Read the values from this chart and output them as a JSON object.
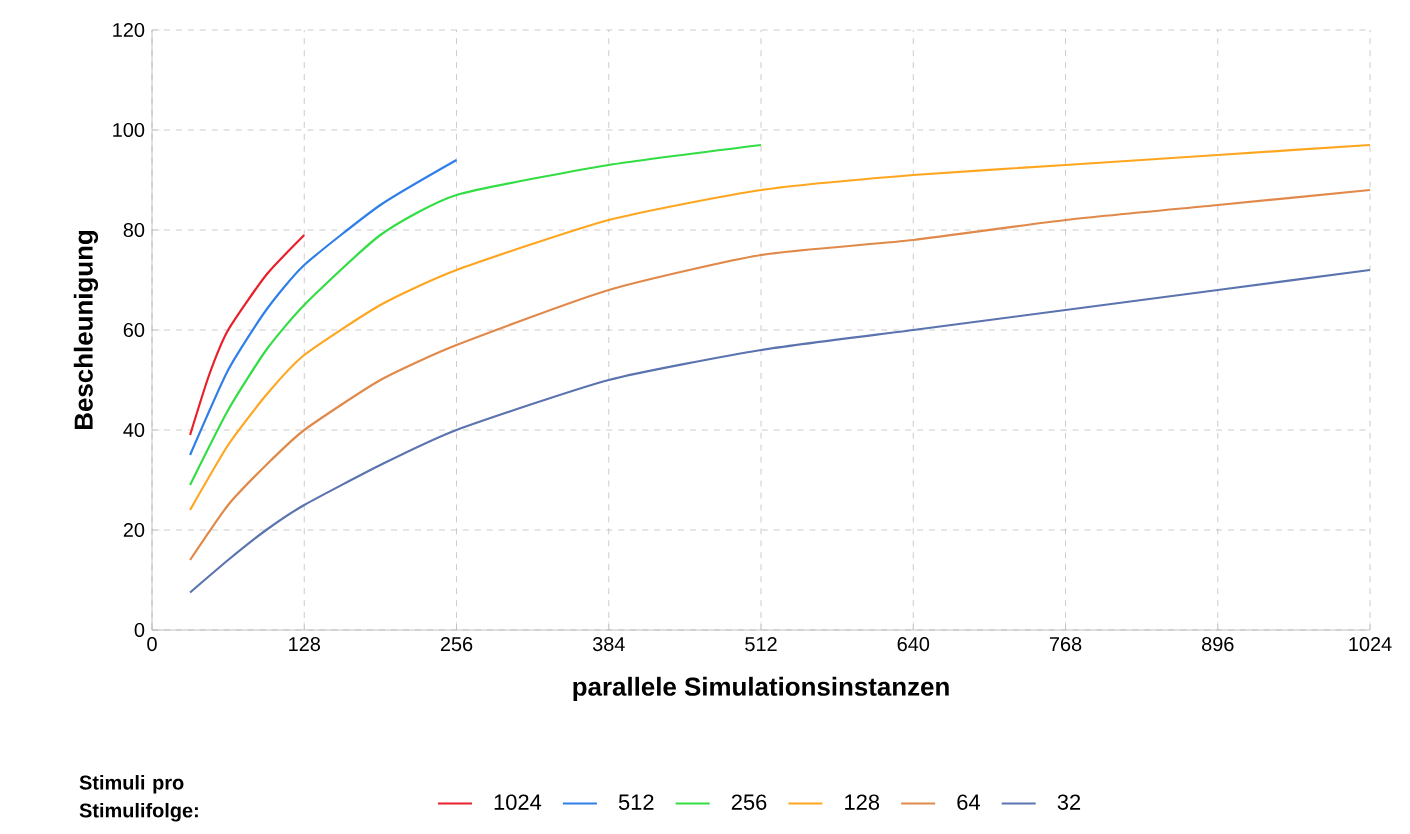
{
  "chart_data": {
    "type": "line",
    "xlabel": "parallele Simulationsinstanzen",
    "ylabel": "Beschleunigung",
    "legend_title": "Stimuli pro Stimulifolge:",
    "xlim": [
      0,
      1024
    ],
    "xticks": [
      0,
      128,
      256,
      384,
      512,
      640,
      768,
      896,
      1024
    ],
    "ylim": [
      0,
      120
    ],
    "yticks": [
      0,
      20,
      40,
      60,
      80,
      100,
      120
    ],
    "grid": true,
    "legend": "bottom",
    "marker": "none",
    "line_style": "solid",
    "series": [
      {
        "name": "1024",
        "color": "#e8202a",
        "x": [
          32,
          48,
          64,
          96,
          128
        ],
        "values": [
          39,
          51,
          60,
          71,
          79
        ]
      },
      {
        "name": "512",
        "color": "#2f7fe8",
        "x": [
          32,
          64,
          96,
          128,
          192,
          256
        ],
        "values": [
          35,
          52,
          64,
          73,
          85,
          94
        ]
      },
      {
        "name": "256",
        "color": "#33dd44",
        "x": [
          32,
          64,
          96,
          128,
          192,
          256,
          384,
          512
        ],
        "values": [
          29,
          44,
          56,
          65,
          79,
          87,
          93,
          97
        ]
      },
      {
        "name": "128",
        "color": "#ffa620",
        "x": [
          32,
          64,
          96,
          128,
          192,
          256,
          384,
          512,
          640,
          768,
          896,
          1024
        ],
        "values": [
          24,
          37,
          47,
          55,
          65,
          72,
          82,
          88,
          91,
          93,
          95,
          97
        ]
      },
      {
        "name": "64",
        "color": "#e0894a",
        "x": [
          32,
          64,
          96,
          128,
          192,
          256,
          384,
          512,
          640,
          768,
          896,
          1024
        ],
        "values": [
          14,
          25,
          33,
          40,
          50,
          57,
          68,
          75,
          78,
          82,
          85,
          88
        ]
      },
      {
        "name": "32",
        "color": "#5b74b0",
        "x": [
          32,
          64,
          96,
          128,
          192,
          256,
          384,
          512,
          640,
          768,
          896,
          1024
        ],
        "values": [
          7.5,
          14,
          20,
          25,
          33,
          40,
          50,
          56,
          60,
          64,
          68,
          72
        ]
      }
    ]
  }
}
